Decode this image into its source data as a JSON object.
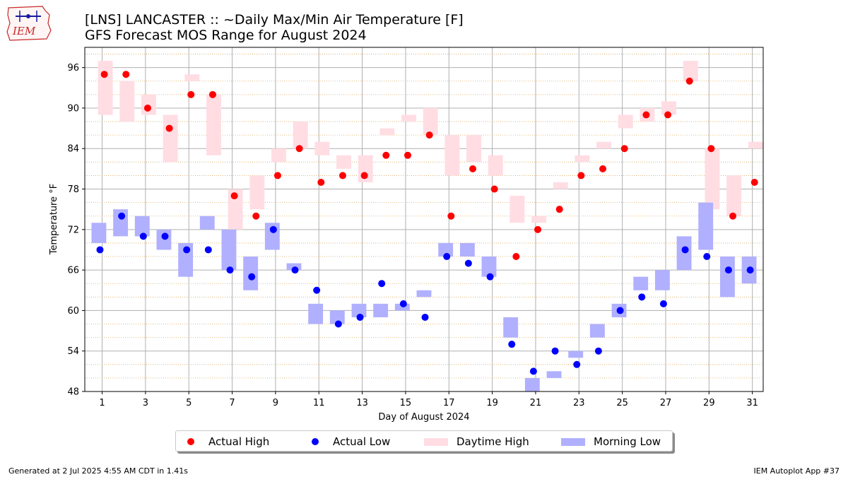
{
  "page": {
    "title_line1": "[LNS] LANCASTER :: ~Daily Max/Min Air Temperature [F]",
    "title_line2": "GFS Forecast MOS Range for August 2024",
    "logo_text": "IEM",
    "footer_left": "Generated at 2 Jul 2025 4:55 AM CDT in 1.41s",
    "footer_right": "IEM Autoplot App #37"
  },
  "legend": [
    {
      "label": "Actual High",
      "kind": "dot",
      "color": "#ff0000"
    },
    {
      "label": "Actual Low",
      "kind": "dot",
      "color": "#0000ff"
    },
    {
      "label": "Daytime High",
      "kind": "box",
      "color": "#ffdde3"
    },
    {
      "label": "Morning Low",
      "kind": "box",
      "color": "#b0b0ff"
    }
  ],
  "chart_data": {
    "type": "scatter",
    "xlabel": "Day of August 2024",
    "ylabel": "Temperature °F",
    "xlim": [
      0.2,
      31.5
    ],
    "ylim": [
      48,
      99
    ],
    "xticks": [
      1,
      3,
      5,
      7,
      9,
      11,
      13,
      15,
      17,
      19,
      21,
      23,
      25,
      27,
      29,
      31
    ],
    "yticks": [
      48,
      54,
      60,
      66,
      72,
      78,
      84,
      90,
      96
    ],
    "grid": true,
    "legend_position": "bottom",
    "colors": {
      "actual_high": "#ff0000",
      "actual_low": "#0000ff",
      "high_range": "#ffdde3",
      "low_range": "#b0b0ff"
    },
    "actual_high": [
      95,
      95,
      90,
      87,
      92,
      92,
      77,
      74,
      80,
      84,
      79,
      80,
      80,
      83,
      83,
      86,
      74,
      81,
      78,
      68,
      72,
      75,
      80,
      81,
      84,
      89,
      89,
      94,
      84,
      74,
      79
    ],
    "actual_low": [
      69,
      74,
      71,
      71,
      69,
      69,
      66,
      65,
      72,
      66,
      63,
      58,
      59,
      64,
      61,
      59,
      68,
      67,
      65,
      55,
      51,
      54,
      52,
      54,
      60,
      62,
      61,
      69,
      68,
      66,
      66
    ],
    "high_range": [
      [
        89,
        97
      ],
      [
        88,
        94
      ],
      [
        89,
        92
      ],
      [
        82,
        89
      ],
      [
        94,
        95
      ],
      [
        83,
        92
      ],
      [
        72,
        78
      ],
      [
        75,
        80
      ],
      [
        82,
        84
      ],
      [
        84,
        88
      ],
      [
        83,
        85
      ],
      [
        81,
        83
      ],
      [
        79,
        83
      ],
      [
        86,
        87
      ],
      [
        88,
        89
      ],
      [
        86,
        90
      ],
      [
        80,
        86
      ],
      [
        82,
        86
      ],
      [
        80,
        83
      ],
      [
        73,
        77
      ],
      [
        73,
        74
      ],
      [
        78,
        79
      ],
      [
        82,
        83
      ],
      [
        84,
        85
      ],
      [
        87,
        89
      ],
      [
        88,
        90
      ],
      [
        89,
        91
      ],
      [
        94,
        97
      ],
      [
        75,
        84
      ],
      [
        74,
        80
      ],
      [
        84,
        85
      ]
    ],
    "low_range": [
      [
        70,
        73
      ],
      [
        71,
        75
      ],
      [
        71,
        74
      ],
      [
        69,
        72
      ],
      [
        65,
        70
      ],
      [
        72,
        74
      ],
      [
        66,
        72
      ],
      [
        63,
        68
      ],
      [
        69,
        73
      ],
      [
        66,
        67
      ],
      [
        58,
        61
      ],
      [
        58,
        60
      ],
      [
        59,
        61
      ],
      [
        59,
        61
      ],
      [
        60,
        61
      ],
      [
        62,
        63
      ],
      [
        68,
        70
      ],
      [
        68,
        70
      ],
      [
        65,
        68
      ],
      [
        56,
        59
      ],
      [
        48,
        50
      ],
      [
        50,
        51
      ],
      [
        53,
        54
      ],
      [
        56,
        58
      ],
      [
        59,
        61
      ],
      [
        63,
        65
      ],
      [
        63,
        66
      ],
      [
        66,
        71
      ],
      [
        69,
        76
      ],
      [
        62,
        68
      ],
      [
        64,
        68
      ]
    ]
  }
}
